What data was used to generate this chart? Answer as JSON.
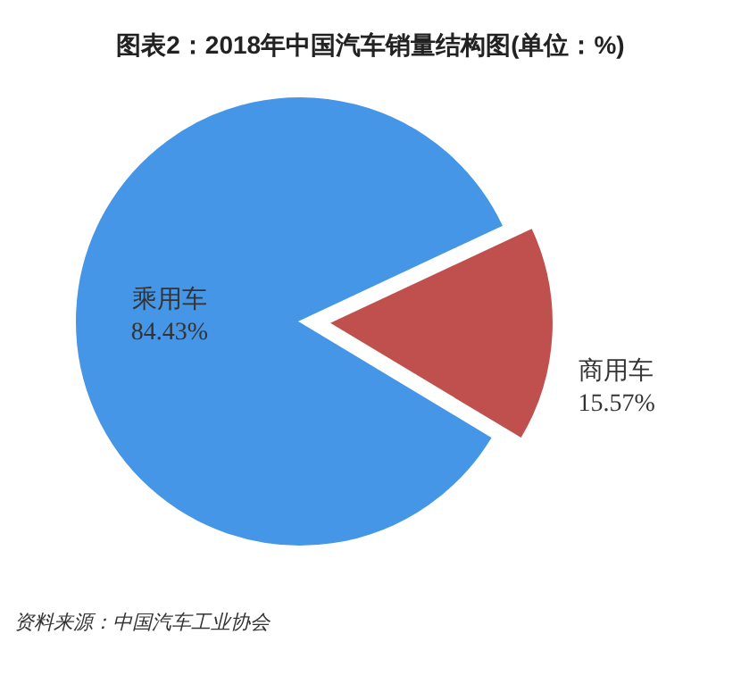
{
  "chart_data": {
    "type": "pie",
    "title": "图表2：2018年中国汽车销量结构图(单位：%)",
    "categories": [
      "乘用车",
      "商用车"
    ],
    "values": [
      84.43,
      15.57
    ],
    "colors": [
      "#4596e6",
      "#c0504d"
    ],
    "value_labels": [
      "84.43%",
      "15.57%"
    ],
    "annotations": [
      "资料来源：中国汽车工业协会"
    ]
  }
}
